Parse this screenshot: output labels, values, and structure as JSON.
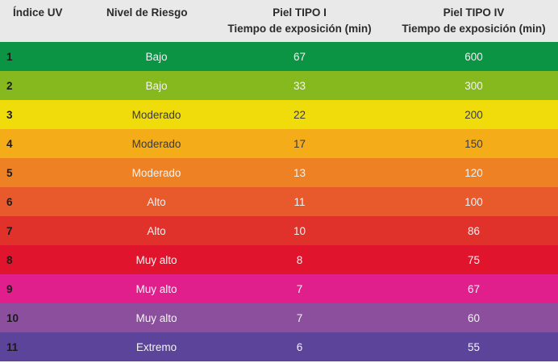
{
  "headers": {
    "uv_index": "Índice UV",
    "risk_level": "Nivel de Riesgo",
    "skin1_line1": "Piel TIPO I",
    "skin1_line2": "Tiempo de exposición (min)",
    "skin4_line1": "Piel TIPO IV",
    "skin4_line2": "Tiempo de exposición (min)"
  },
  "rows": [
    {
      "index": "1",
      "risk": "Bajo",
      "skin1": "67",
      "skin4": "600",
      "color": "#0a9444",
      "tone": "light"
    },
    {
      "index": "2",
      "risk": "Bajo",
      "skin1": "33",
      "skin4": "300",
      "color": "#86b91e",
      "tone": "light"
    },
    {
      "index": "3",
      "risk": "Moderado",
      "skin1": "22",
      "skin4": "200",
      "color": "#efdc0a",
      "tone": "dark"
    },
    {
      "index": "4",
      "risk": "Moderado",
      "skin1": "17",
      "skin4": "150",
      "color": "#f4ac18",
      "tone": "dark"
    },
    {
      "index": "5",
      "risk": "Moderado",
      "skin1": "13",
      "skin4": "120",
      "color": "#ee8124",
      "tone": "light"
    },
    {
      "index": "6",
      "risk": "Alto",
      "skin1": "11",
      "skin4": "100",
      "color": "#e85a2b",
      "tone": "light"
    },
    {
      "index": "7",
      "risk": "Alto",
      "skin1": "10",
      "skin4": "86",
      "color": "#e0312b",
      "tone": "light"
    },
    {
      "index": "8",
      "risk": "Muy alto",
      "skin1": "8",
      "skin4": "75",
      "color": "#e0142c",
      "tone": "light"
    },
    {
      "index": "9",
      "risk": "Muy alto",
      "skin1": "7",
      "skin4": "67",
      "color": "#e01f8c",
      "tone": "light"
    },
    {
      "index": "10",
      "risk": "Muy alto",
      "skin1": "7",
      "skin4": "60",
      "color": "#8b4f9e",
      "tone": "light"
    },
    {
      "index": "11",
      "risk": "Extremo",
      "skin1": "6",
      "skin4": "55",
      "color": "#5b4499",
      "tone": "light"
    }
  ]
}
